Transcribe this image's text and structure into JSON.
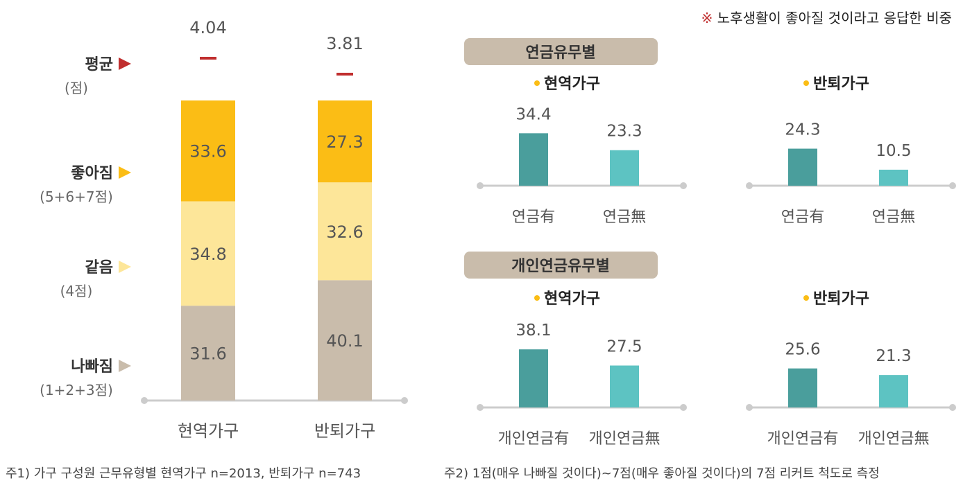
{
  "note": "※ 노후생활이 좋아질 것이라고 응답한 비중",
  "footnote1": "주1) 가구 구성원 근무유형별 현역가구 n=2013, 반퇴가구 n=743",
  "footnote2": "주2) 1점(매우 나빠질 것이다)~7점(매우 좋아질 것이다)의 7점 리커트 척도로 측정",
  "colors": {
    "worse": "#c9bcab",
    "same": "#fde699",
    "better": "#fbbd15",
    "avg_marker": "#c02e2e",
    "bar_dark": "#4a9e9c",
    "bar_light": "#5dc3c2",
    "header_bg": "#c9bcab",
    "bullet": "#fbbd15",
    "axis": "#cccccc"
  },
  "chart_data": [
    {
      "type": "bar",
      "stacked": true,
      "categories": [
        "현역가구",
        "반퇴가구"
      ],
      "series": [
        {
          "name": "나빠짐",
          "sub": "(1+2+3점)",
          "values": [
            31.6,
            40.1
          ]
        },
        {
          "name": "같음",
          "sub": "(4점)",
          "values": [
            34.8,
            32.6
          ]
        },
        {
          "name": "좋아짐",
          "sub": "(5+6+7점)",
          "values": [
            33.6,
            27.3
          ]
        }
      ],
      "average": {
        "name": "평균",
        "sub": "(점)",
        "values": [
          4.04,
          3.81
        ]
      }
    },
    {
      "type": "bar",
      "header": "연금유무별",
      "panels": [
        {
          "title": "현역가구",
          "categories": [
            "연금有",
            "연금無"
          ],
          "values": [
            34.4,
            23.3
          ]
        },
        {
          "title": "반퇴가구",
          "categories": [
            "연금有",
            "연금無"
          ],
          "values": [
            24.3,
            10.5
          ]
        }
      ]
    },
    {
      "type": "bar",
      "header": "개인연금유무별",
      "panels": [
        {
          "title": "현역가구",
          "categories": [
            "개인연금有",
            "개인연금無"
          ],
          "values": [
            38.1,
            27.5
          ]
        },
        {
          "title": "반퇴가구",
          "categories": [
            "개인연금有",
            "개인연금無"
          ],
          "values": [
            25.6,
            21.3
          ]
        }
      ]
    }
  ]
}
